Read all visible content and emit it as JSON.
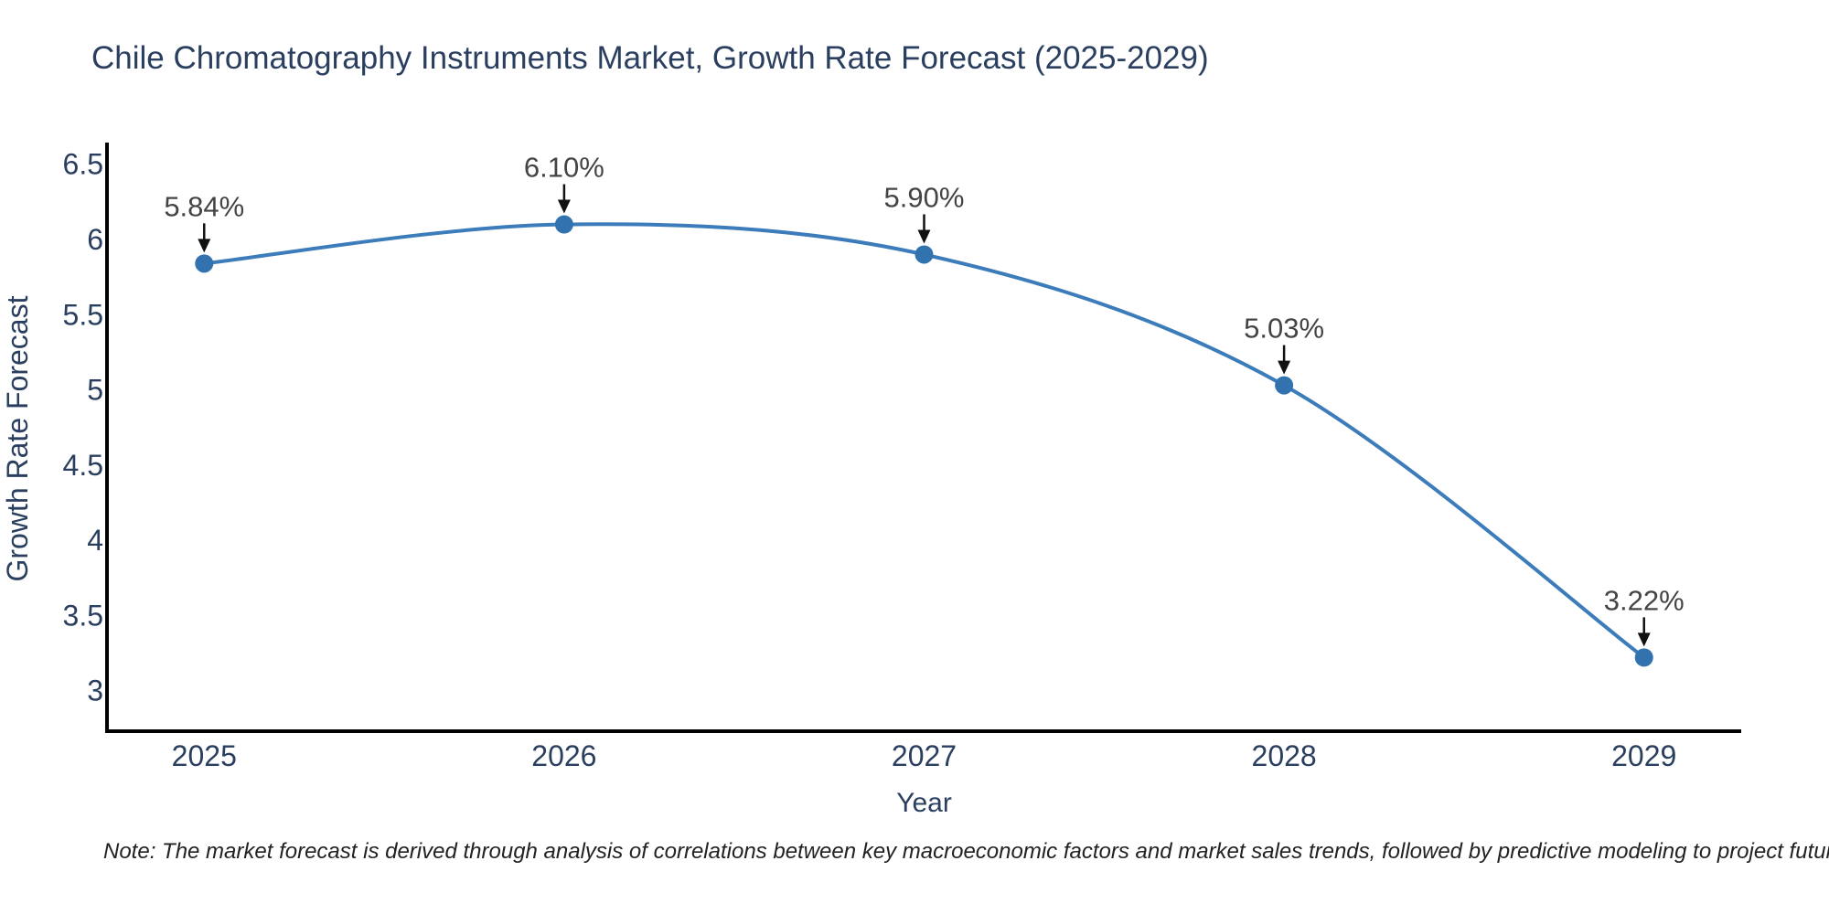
{
  "title": "Chile Chromatography Instruments Market, Growth Rate Forecast (2025-2029)",
  "note": "Note: The market forecast is derived through analysis of correlations between key macroeconomic factors and market sales trends, followed by predictive modeling to project future sales",
  "chart_data": {
    "type": "line",
    "title": "Chile Chromatography Instruments Market, Growth Rate Forecast (2025-2029)",
    "x": [
      2025,
      2026,
      2027,
      2028,
      2029
    ],
    "y": [
      5.84,
      6.1,
      5.9,
      5.03,
      3.22
    ],
    "point_labels": [
      "5.84%",
      "6.10%",
      "5.90%",
      "5.03%",
      "3.22%"
    ],
    "xlabel": "Year",
    "ylabel": "Growth Rate Forecast",
    "xticks": [
      "2025",
      "2026",
      "2027",
      "2028",
      "2029"
    ],
    "yticks": [
      "6.5",
      "6",
      "5.5",
      "5",
      "4.5",
      "4",
      "3.5",
      "3"
    ],
    "xlim": [
      2024.73,
      2029.27
    ],
    "ylim": [
      2.73,
      6.62
    ],
    "line_shape": "spline",
    "grid": false,
    "legend": "none",
    "colors": {
      "line": "#3c7cba",
      "marker": "#3273af",
      "axis": "#000000",
      "tick_text": "#2a3f5f",
      "title_text": "#2a3f5f",
      "annotation_text": "#444444",
      "arrow": "#111111"
    }
  }
}
